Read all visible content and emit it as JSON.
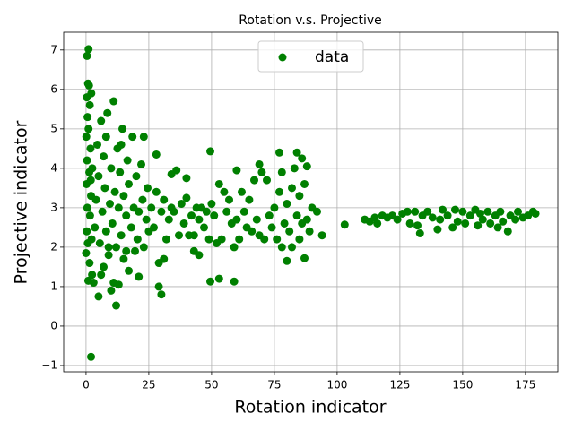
{
  "chart_data": {
    "type": "scatter",
    "title": "Rotation v.s. Projective",
    "xlabel": "Rotation indicator",
    "ylabel": "Projective indicator",
    "x": [
      0,
      0.3,
      0.5,
      0.2,
      0.4,
      0.1,
      0.6,
      0.3,
      0.8,
      1.2,
      1.5,
      1,
      1.8,
      1.3,
      2,
      1.6,
      2.2,
      1.4,
      0.9,
      2.4,
      2.1,
      2.5,
      0.7,
      1.9,
      1,
      0.4,
      2,
      3,
      3.5,
      4,
      4.5,
      5,
      5,
      5.5,
      6,
      6.5,
      7,
      7,
      7.5,
      8,
      8.5,
      9,
      9.5,
      10,
      10,
      10.5,
      11,
      11.5,
      12,
      12,
      12.5,
      13,
      13,
      13.5,
      14,
      14.5,
      15,
      15,
      16,
      16.5,
      17,
      17,
      18,
      18.5,
      19,
      19.5,
      20,
      20.5,
      21,
      21,
      22,
      22.5,
      23,
      23,
      24,
      24.5,
      25,
      6,
      8,
      9,
      11,
      14,
      16,
      26,
      27,
      28,
      28,
      29,
      29,
      30,
      30,
      31,
      31,
      32,
      33,
      34,
      34,
      35,
      36,
      37,
      38,
      39,
      40,
      40,
      41,
      42,
      43,
      43,
      44,
      45,
      45,
      46,
      47,
      48,
      49,
      49.5,
      49.5,
      50,
      51,
      52,
      53,
      53,
      54,
      55,
      56,
      57,
      58,
      59,
      59,
      60,
      60,
      61,
      62,
      63,
      64,
      65,
      66,
      67,
      68,
      69,
      69,
      70,
      71,
      72,
      73,
      74,
      75,
      76,
      77,
      77,
      78,
      78,
      79,
      80,
      80,
      81,
      82,
      82,
      83,
      84,
      84,
      85,
      85,
      86,
      86,
      87,
      87,
      88,
      88,
      89,
      90,
      92,
      94,
      103,
      111,
      113,
      115,
      116,
      118,
      120,
      122,
      124,
      126,
      128,
      129,
      131,
      132,
      133,
      134,
      136,
      138,
      140,
      141,
      142,
      144,
      146,
      147,
      148,
      150,
      151,
      153,
      155,
      156,
      157,
      158,
      160,
      161,
      163,
      164,
      165,
      166,
      168,
      169,
      171,
      172,
      174,
      176,
      178,
      179
    ],
    "series": [
      {
        "name": "data",
        "color": "#008000",
        "values": [
          1.85,
          2.4,
          3.0,
          3.6,
          4.2,
          4.8,
          5.3,
          5.8,
          6.15,
          6.1,
          5.6,
          5.0,
          4.5,
          3.9,
          3.3,
          2.8,
          2.2,
          1.6,
          1.15,
          1.3,
          5.9,
          4.0,
          2.1,
          3.7,
          7.02,
          6.85,
          -0.78,
          1.1,
          2.5,
          3.2,
          4.6,
          0.75,
          3.8,
          2.1,
          5.2,
          2.9,
          1.5,
          4.3,
          3.5,
          2.4,
          5.4,
          1.8,
          3.1,
          0.9,
          4.0,
          2.6,
          5.7,
          3.4,
          0.52,
          2.0,
          4.5,
          1.05,
          3.0,
          3.9,
          2.3,
          5.0,
          1.7,
          3.3,
          2.8,
          4.2,
          1.4,
          3.6,
          2.5,
          4.8,
          3.0,
          1.9,
          3.8,
          2.2,
          1.25,
          2.9,
          4.1,
          3.2,
          2.0,
          4.8,
          2.7,
          3.5,
          2.4,
          1.3,
          4.8,
          2.0,
          1.1,
          4.6,
          1.9,
          3.0,
          2.5,
          4.35,
          3.4,
          1.0,
          1.6,
          0.8,
          2.9,
          1.7,
          3.2,
          2.2,
          2.7,
          3.85,
          3.0,
          2.9,
          3.95,
          2.3,
          3.1,
          2.6,
          3.25,
          3.75,
          2.3,
          2.8,
          1.9,
          2.3,
          3.0,
          1.8,
          2.7,
          3.0,
          2.5,
          2.9,
          2.2,
          1.13,
          4.43,
          3.1,
          2.8,
          2.1,
          1.2,
          3.6,
          2.2,
          3.4,
          2.9,
          3.2,
          2.6,
          1.13,
          2.0,
          3.95,
          2.7,
          2.2,
          3.4,
          2.9,
          2.5,
          3.2,
          2.4,
          3.7,
          2.7,
          4.1,
          2.3,
          3.9,
          2.2,
          3.7,
          2.8,
          2.5,
          3.0,
          2.2,
          3.4,
          4.4,
          2.0,
          3.9,
          2.6,
          1.65,
          3.1,
          2.4,
          3.5,
          2.0,
          4.0,
          2.8,
          4.4,
          2.2,
          3.3,
          2.6,
          4.25,
          1.72,
          3.6,
          4.05,
          2.7,
          2.4,
          3.0,
          2.9,
          2.3,
          2.57,
          2.7,
          2.65,
          2.75,
          2.6,
          2.8,
          2.75,
          2.8,
          2.7,
          2.85,
          2.9,
          2.6,
          2.9,
          2.55,
          2.35,
          2.8,
          2.9,
          2.75,
          2.45,
          2.7,
          2.95,
          2.8,
          2.5,
          2.95,
          2.65,
          2.9,
          2.6,
          2.8,
          2.95,
          2.55,
          2.85,
          2.7,
          2.9,
          2.6,
          2.8,
          2.5,
          2.9,
          2.65,
          2.4,
          2.8,
          2.7,
          2.9,
          2.75,
          2.8,
          2.9,
          2.85
        ]
      }
    ],
    "xlim": [
      -8.9,
      187.9
    ],
    "xticks": [
      0,
      25,
      50,
      75,
      100,
      125,
      150,
      175
    ],
    "ylim": [
      -1.16,
      7.45
    ],
    "yticks": [
      {
        "value": -1,
        "label": "−1"
      },
      0,
      1,
      2,
      3,
      4,
      5,
      6,
      7
    ],
    "grid": true,
    "legend": "upper center"
  }
}
